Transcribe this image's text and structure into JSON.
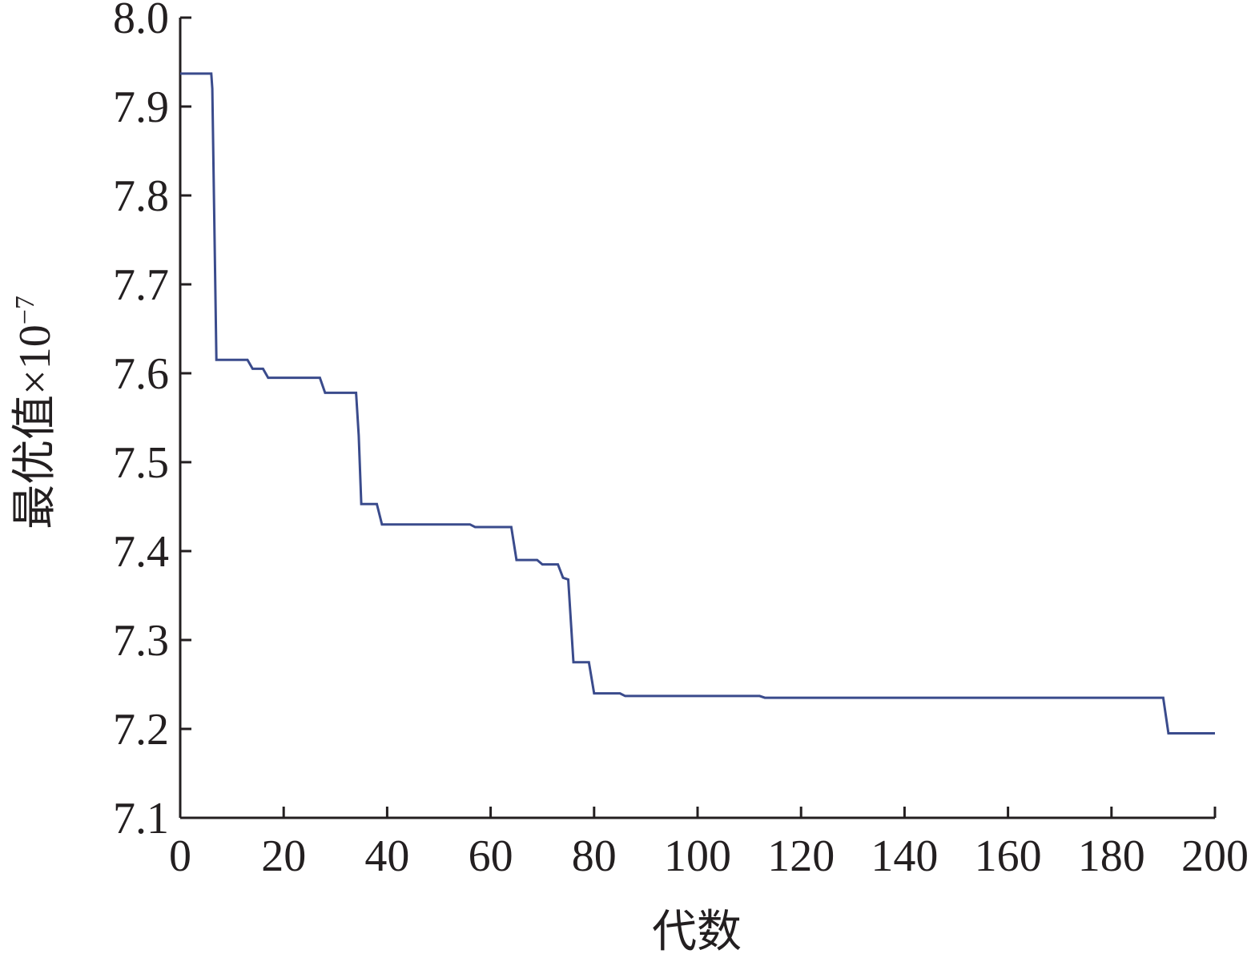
{
  "chart_data": {
    "type": "line",
    "title": "",
    "xlabel": "代数",
    "ylabel": "最优值×10",
    "ylabel_exponent": "−7",
    "xlim": [
      0,
      200
    ],
    "ylim": [
      7.1,
      8.0
    ],
    "x_ticks": [
      "0",
      "20",
      "40",
      "60",
      "80",
      "100",
      "120",
      "140",
      "160",
      "180",
      "200"
    ],
    "y_ticks": [
      "7.1",
      "7.2",
      "7.3",
      "7.4",
      "7.5",
      "7.6",
      "7.7",
      "7.8",
      "7.9",
      "8.0"
    ],
    "grid": false,
    "legend": "none",
    "colors": {
      "series": "#3a4b8c",
      "axis": "#231f20"
    },
    "series": [
      {
        "points": [
          [
            0,
            7.937
          ],
          [
            6,
            7.937
          ],
          [
            6.2,
            7.92
          ],
          [
            7,
            7.615
          ],
          [
            13,
            7.615
          ],
          [
            14,
            7.605
          ],
          [
            16,
            7.605
          ],
          [
            17,
            7.595
          ],
          [
            27,
            7.595
          ],
          [
            28,
            7.578
          ],
          [
            34,
            7.578
          ],
          [
            34.5,
            7.53
          ],
          [
            35,
            7.453
          ],
          [
            38,
            7.453
          ],
          [
            39,
            7.43
          ],
          [
            56,
            7.43
          ],
          [
            57,
            7.427
          ],
          [
            64,
            7.427
          ],
          [
            65,
            7.39
          ],
          [
            69,
            7.39
          ],
          [
            70,
            7.385
          ],
          [
            73,
            7.385
          ],
          [
            74,
            7.37
          ],
          [
            75,
            7.368
          ],
          [
            76,
            7.275
          ],
          [
            79,
            7.275
          ],
          [
            80,
            7.24
          ],
          [
            85,
            7.24
          ],
          [
            86,
            7.237
          ],
          [
            112,
            7.237
          ],
          [
            113,
            7.235
          ],
          [
            190,
            7.235
          ],
          [
            191,
            7.195
          ],
          [
            200,
            7.195
          ]
        ]
      }
    ]
  }
}
